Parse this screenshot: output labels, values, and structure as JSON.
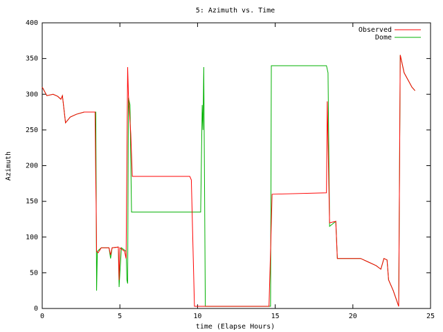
{
  "chart_data": {
    "type": "line",
    "title": "5: Azimuth vs. Time",
    "x_label": "time (Elapse Hours)",
    "y_label": "Azimuth",
    "xlim": [
      0,
      25
    ],
    "xticks": [
      0,
      5,
      10,
      15,
      20,
      25
    ],
    "ylim": [
      0,
      400
    ],
    "yticks": [
      0,
      50,
      100,
      150,
      200,
      250,
      300,
      350,
      400
    ],
    "legend": "top-right",
    "series": [
      {
        "name": "Observed",
        "color": "#ff0000",
        "x": [
          0,
          0.3,
          0.7,
          1.0,
          1.2,
          1.3,
          1.5,
          1.8,
          2.2,
          2.7,
          3.4,
          3.45,
          3.47,
          3.5,
          3.6,
          3.8,
          4.3,
          4.4,
          4.5,
          4.9,
          4.95,
          5.0,
          5.3,
          5.4,
          5.5,
          5.55,
          5.6,
          5.7,
          5.8,
          9.5,
          9.6,
          9.8,
          14.6,
          14.7,
          14.8,
          18.3,
          18.35,
          18.5,
          18.9,
          19.0,
          20.5,
          21.0,
          21.5,
          21.8,
          22.0,
          22.2,
          22.3,
          22.6,
          22.95,
          23.05,
          23.3,
          23.6,
          23.8,
          24.0
        ],
        "values": [
          310,
          298,
          300,
          297,
          293,
          298,
          260,
          268,
          272,
          275,
          275,
          175,
          150,
          80,
          78,
          85,
          85,
          75,
          85,
          86,
          40,
          85,
          80,
          70,
          338,
          300,
          280,
          245,
          185,
          185,
          180,
          3,
          3,
          80,
          160,
          162,
          290,
          120,
          122,
          70,
          70,
          65,
          60,
          55,
          70,
          68,
          40,
          25,
          3,
          355,
          330,
          318,
          310,
          305
        ]
      },
      {
        "name": "Dome",
        "color": "#00b000",
        "x": [
          0,
          0.3,
          0.7,
          1.0,
          1.2,
          1.3,
          1.5,
          1.8,
          2.2,
          2.7,
          3.45,
          3.5,
          3.55,
          3.8,
          4.3,
          4.4,
          4.5,
          4.9,
          4.95,
          5.0,
          5.1,
          5.4,
          5.45,
          5.5,
          5.55,
          5.65,
          5.75,
          10.2,
          10.3,
          10.35,
          10.4,
          10.5,
          14.7,
          14.75,
          18.3,
          18.4,
          18.5,
          18.9,
          19.0,
          20.5,
          21.0,
          21.5,
          21.8,
          22.0,
          22.2,
          22.3,
          22.6,
          22.95,
          23.05,
          23.3,
          23.6,
          23.8,
          24.0
        ],
        "values": [
          310,
          298,
          300,
          297,
          293,
          298,
          260,
          268,
          272,
          275,
          275,
          25,
          80,
          85,
          85,
          70,
          85,
          86,
          30,
          50,
          85,
          80,
          40,
          35,
          295,
          285,
          135,
          135,
          285,
          250,
          338,
          3,
          3,
          340,
          340,
          330,
          115,
          122,
          70,
          70,
          65,
          60,
          55,
          70,
          68,
          40,
          25,
          3,
          355,
          330,
          318,
          310,
          305
        ]
      }
    ]
  }
}
